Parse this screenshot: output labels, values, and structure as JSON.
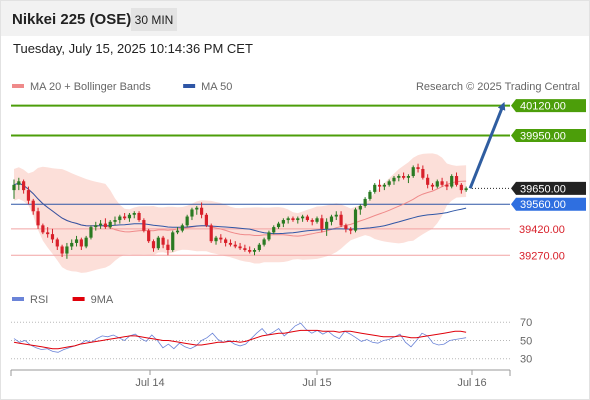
{
  "header": {
    "title": "Nikkei 225 (OSE)",
    "timeframe": "30 MIN"
  },
  "timestamp": "Tuesday, July 15, 2025 10:14:36 PM CET",
  "watermark": "Research © 2025 Trading Central",
  "colors": {
    "resistance": "#4c9e0a",
    "support": "#f2a3a3",
    "current": "#222222",
    "ma50": "#2f56a6",
    "band": "#fbd9d2",
    "ma20": "#ef8a8a",
    "bull": "#2a7a22",
    "bear": "#d8202a",
    "arrow": "#2f5da0",
    "rsi": "#6b84d8",
    "rsi_ma": "#e0000a"
  },
  "chart_data": [
    {
      "type": "candlestick",
      "legend": [
        {
          "name": "MA 20 + Bollinger Bands",
          "color": "#ef8a8a"
        },
        {
          "name": "MA 50",
          "color": "#2f56a6"
        }
      ],
      "ylim": [
        39158,
        40180
      ],
      "x_ticks": [
        "Jul 14",
        "Jul 15",
        "Jul 16"
      ],
      "levels": [
        {
          "label": "40120.00",
          "value": 40120,
          "kind": "resistance"
        },
        {
          "label": "39950.00",
          "value": 39950,
          "kind": "resistance"
        },
        {
          "label": "39650.00",
          "value": 39650,
          "kind": "current"
        },
        {
          "label": "39560.00",
          "value": 39560,
          "kind": "ma50"
        },
        {
          "label": "39420.00",
          "value": 39420,
          "kind": "support"
        },
        {
          "label": "39270.00",
          "value": 39270,
          "kind": "support"
        }
      ],
      "candles": [
        [
          39640,
          39700,
          39590,
          39670
        ],
        [
          39670,
          39710,
          39640,
          39690
        ],
        [
          39690,
          39700,
          39620,
          39640
        ],
        [
          39640,
          39660,
          39560,
          39580
        ],
        [
          39580,
          39590,
          39500,
          39520
        ],
        [
          39520,
          39540,
          39420,
          39440
        ],
        [
          39440,
          39450,
          39390,
          39400
        ],
        [
          39400,
          39430,
          39370,
          39390
        ],
        [
          39390,
          39420,
          39340,
          39360
        ],
        [
          39360,
          39370,
          39300,
          39320
        ],
        [
          39320,
          39330,
          39260,
          39280
        ],
        [
          39280,
          39340,
          39250,
          39320
        ],
        [
          39320,
          39360,
          39300,
          39340
        ],
        [
          39340,
          39380,
          39320,
          39360
        ],
        [
          39360,
          39370,
          39300,
          39320
        ],
        [
          39320,
          39380,
          39310,
          39370
        ],
        [
          39370,
          39440,
          39360,
          39430
        ],
        [
          39430,
          39460,
          39410,
          39440
        ],
        [
          39440,
          39470,
          39420,
          39450
        ],
        [
          39450,
          39480,
          39420,
          39430
        ],
        [
          39430,
          39470,
          39420,
          39460
        ],
        [
          39460,
          39490,
          39440,
          39470
        ],
        [
          39470,
          39500,
          39450,
          39490
        ],
        [
          39490,
          39510,
          39470,
          39480
        ],
        [
          39480,
          39510,
          39460,
          39500
        ],
        [
          39500,
          39520,
          39480,
          39510
        ],
        [
          39510,
          39520,
          39460,
          39470
        ],
        [
          39470,
          39480,
          39400,
          39410
        ],
        [
          39410,
          39420,
          39340,
          39350
        ],
        [
          39350,
          39360,
          39290,
          39310
        ],
        [
          39310,
          39380,
          39300,
          39370
        ],
        [
          39370,
          39380,
          39310,
          39330
        ],
        [
          39330,
          39360,
          39270,
          39300
        ],
        [
          39300,
          39410,
          39290,
          39400
        ],
        [
          39400,
          39430,
          39390,
          39410
        ],
        [
          39410,
          39450,
          39400,
          39440
        ],
        [
          39440,
          39500,
          39430,
          39490
        ],
        [
          39490,
          39540,
          39470,
          39530
        ],
        [
          39530,
          39550,
          39500,
          39540
        ],
        [
          39540,
          39570,
          39480,
          39500
        ],
        [
          39500,
          39510,
          39430,
          39440
        ],
        [
          39440,
          39450,
          39340,
          39350
        ],
        [
          39350,
          39380,
          39330,
          39370
        ],
        [
          39370,
          39390,
          39340,
          39360
        ],
        [
          39360,
          39370,
          39320,
          39340
        ],
        [
          39340,
          39360,
          39320,
          39330
        ],
        [
          39330,
          39350,
          39310,
          39320
        ],
        [
          39320,
          39340,
          39300,
          39310
        ],
        [
          39310,
          39330,
          39290,
          39300
        ],
        [
          39300,
          39320,
          39280,
          39290
        ],
        [
          39290,
          39310,
          39270,
          39300
        ],
        [
          39300,
          39340,
          39290,
          39330
        ],
        [
          39330,
          39370,
          39320,
          39360
        ],
        [
          39360,
          39410,
          39350,
          39400
        ],
        [
          39400,
          39440,
          39390,
          39430
        ],
        [
          39430,
          39460,
          39420,
          39450
        ],
        [
          39450,
          39480,
          39430,
          39470
        ],
        [
          39470,
          39490,
          39450,
          39480
        ],
        [
          39480,
          39490,
          39460,
          39470
        ],
        [
          39470,
          39490,
          39450,
          39480
        ],
        [
          39480,
          39500,
          39460,
          39490
        ],
        [
          39490,
          39500,
          39460,
          39470
        ],
        [
          39470,
          39480,
          39440,
          39460
        ],
        [
          39460,
          39490,
          39450,
          39480
        ],
        [
          39480,
          39500,
          39400,
          39420
        ],
        [
          39420,
          39480,
          39380,
          39460
        ],
        [
          39460,
          39500,
          39440,
          39490
        ],
        [
          39490,
          39520,
          39470,
          39500
        ],
        [
          39500,
          39520,
          39430,
          39440
        ],
        [
          39440,
          39450,
          39400,
          39420
        ],
        [
          39420,
          39430,
          39390,
          39410
        ],
        [
          39410,
          39540,
          39400,
          39530
        ],
        [
          39530,
          39560,
          39500,
          39550
        ],
        [
          39550,
          39600,
          39540,
          39590
        ],
        [
          39590,
          39640,
          39580,
          39630
        ],
        [
          39630,
          39680,
          39620,
          39670
        ],
        [
          39670,
          39700,
          39630,
          39660
        ],
        [
          39660,
          39680,
          39640,
          39670
        ],
        [
          39670,
          39700,
          39660,
          39690
        ],
        [
          39690,
          39720,
          39670,
          39710
        ],
        [
          39710,
          39730,
          39690,
          39720
        ],
        [
          39720,
          39740,
          39700,
          39710
        ],
        [
          39710,
          39730,
          39680,
          39720
        ],
        [
          39720,
          39780,
          39710,
          39770
        ],
        [
          39770,
          39790,
          39740,
          39760
        ],
        [
          39760,
          39780,
          39700,
          39710
        ],
        [
          39710,
          39730,
          39650,
          39670
        ],
        [
          39670,
          39680,
          39640,
          39660
        ],
        [
          39660,
          39700,
          39650,
          39690
        ],
        [
          39690,
          39710,
          39660,
          39670
        ],
        [
          39670,
          39690,
          39640,
          39660
        ],
        [
          39660,
          39730,
          39650,
          39720
        ],
        [
          39720,
          39740,
          39660,
          39670
        ],
        [
          39670,
          39680,
          39620,
          39640
        ],
        [
          39640,
          39660,
          39630,
          39650
        ]
      ]
    },
    {
      "type": "line",
      "legend": [
        {
          "name": "RSI",
          "color": "#6b84d8"
        },
        {
          "name": "9MA",
          "color": "#e0000a"
        }
      ],
      "ylim": [
        22,
        79
      ],
      "y_ticks": [
        70,
        50,
        30
      ],
      "series": [
        {
          "name": "RSI",
          "values": [
            52,
            48,
            50,
            45,
            42,
            40,
            41,
            38,
            37,
            40,
            42,
            44,
            46,
            50,
            48,
            52,
            55,
            54,
            56,
            53,
            50,
            55,
            57,
            52,
            49,
            56,
            50,
            42,
            46,
            41,
            47,
            43,
            41,
            44,
            50,
            53,
            58,
            51,
            48,
            50,
            46,
            44,
            46,
            52,
            58,
            63,
            56,
            59,
            63,
            55,
            60,
            66,
            69,
            62,
            58,
            61,
            57,
            60,
            55,
            52,
            60,
            57,
            53,
            49,
            51,
            48,
            47,
            50,
            51,
            54,
            57,
            48,
            43,
            50,
            58,
            55,
            47,
            45,
            46,
            50,
            51,
            52,
            53
          ]
        },
        {
          "name": "9MA",
          "values": [
            48,
            47,
            46,
            45,
            44,
            43,
            42,
            41,
            41,
            42,
            43,
            44,
            46,
            47,
            48,
            49,
            50,
            51,
            52,
            53,
            54,
            55,
            55,
            54,
            53,
            52,
            51,
            50,
            50,
            49,
            48,
            47,
            46,
            45,
            45,
            46,
            47,
            48,
            48,
            49,
            49,
            48,
            49,
            51,
            53,
            55,
            56,
            57,
            58,
            58,
            59,
            60,
            61,
            61,
            61,
            61,
            60,
            60,
            60,
            59,
            60,
            60,
            59,
            58,
            57,
            56,
            55,
            54,
            54,
            54,
            55,
            54,
            53,
            53,
            54,
            55,
            56,
            57,
            58,
            59,
            60,
            60,
            59
          ]
        }
      ]
    }
  ]
}
